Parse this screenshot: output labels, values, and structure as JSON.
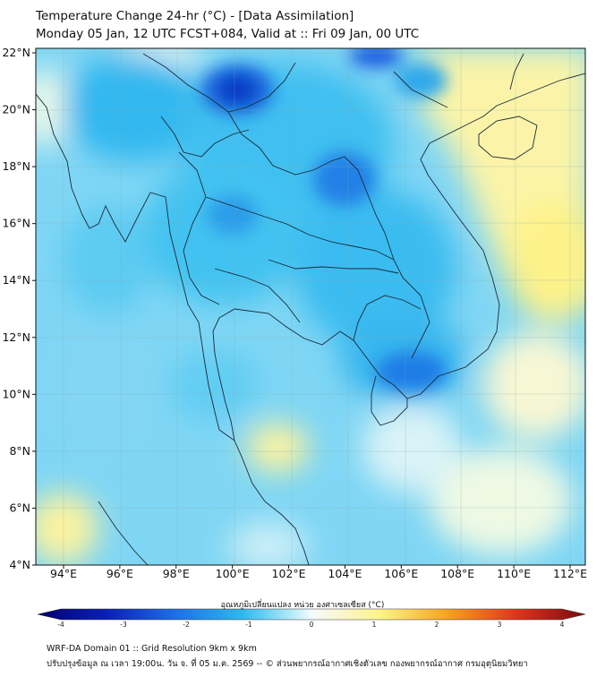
{
  "title": {
    "line1": "Temperature Change 24-hr (°C) - [Data Assimilation]",
    "line2": "Monday 05 Jan, 12 UTC FCST+084, Valid at :: Fri 09 Jan, 00 UTC"
  },
  "map": {
    "lat_labels": [
      "22°N",
      "20°N",
      "18°N",
      "16°N",
      "14°N",
      "12°N",
      "10°N",
      "8°N",
      "6°N",
      "4°N"
    ],
    "lon_labels": [
      "94°E",
      "96°E",
      "98°E",
      "100°E",
      "102°E",
      "104°E",
      "106°E",
      "108°E",
      "110°E",
      "112°E"
    ]
  },
  "colorbar": {
    "title": "อุณหภูมิเปลี่ยนแปลง หน่วย องศาเซลเซียส (°C)",
    "ticks": [
      "-4",
      "-3",
      "-2",
      "-1",
      "0",
      "1",
      "2",
      "3",
      "4"
    ]
  },
  "footer": {
    "line1": "WRF-DA Domain 01 :: Grid Resolution 9km x 9km",
    "line2": "ปรับปรุงข้อมูล ณ เวลา 19:00น. วัน จ. ที่ 05 ม.ค. 2569 -- © ส่วนพยากรณ์อากาศเชิงตัวเลข กองพยากรณ์อากาศ กรมอุตุนิยมวิทยา"
  },
  "colors": {
    "cold_dark": "#0a1fb8",
    "cold": "#1e6ee6",
    "cool": "#2fb9ee",
    "mild": "#8fdcf6",
    "neutral": "#f4fbff",
    "warm": "#fdf48a",
    "hot": "#f5a21c",
    "very_hot": "#c3151b"
  }
}
